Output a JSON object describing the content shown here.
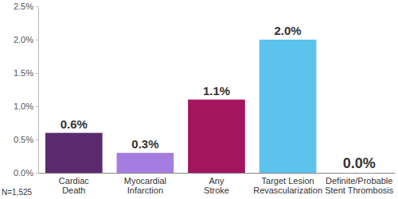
{
  "chart_data": {
    "type": "bar",
    "categories": [
      "Cardiac\nDeath",
      "Myocardial\nInfarction",
      "Any\nStroke",
      "Target Lesion\nRevascularization",
      "Definite/Probable\nStent Thrombosis"
    ],
    "values": [
      0.6,
      0.3,
      1.1,
      2.0,
      0.0
    ],
    "value_labels": [
      "0.6%",
      "0.3%",
      "1.1%",
      "2.0%",
      "0.0%"
    ],
    "colors": [
      "#5b2a6e",
      "#a57de0",
      "#a3155f",
      "#5bc3ec",
      "#2e2a6b"
    ],
    "ylim": [
      0,
      2.5
    ],
    "yticks": [
      {
        "value": 0,
        "label": "0.0%"
      },
      {
        "value": 0.5,
        "label": "0.5%"
      },
      {
        "value": 1,
        "label": "1.0%"
      },
      {
        "value": 1.5,
        "label": "1.5%"
      },
      {
        "value": 2,
        "label": "2.0%"
      },
      {
        "value": 2.5,
        "label": "2.5%"
      }
    ],
    "grid": false,
    "data_labels": true,
    "annotations": [
      "N=1,525"
    ]
  }
}
